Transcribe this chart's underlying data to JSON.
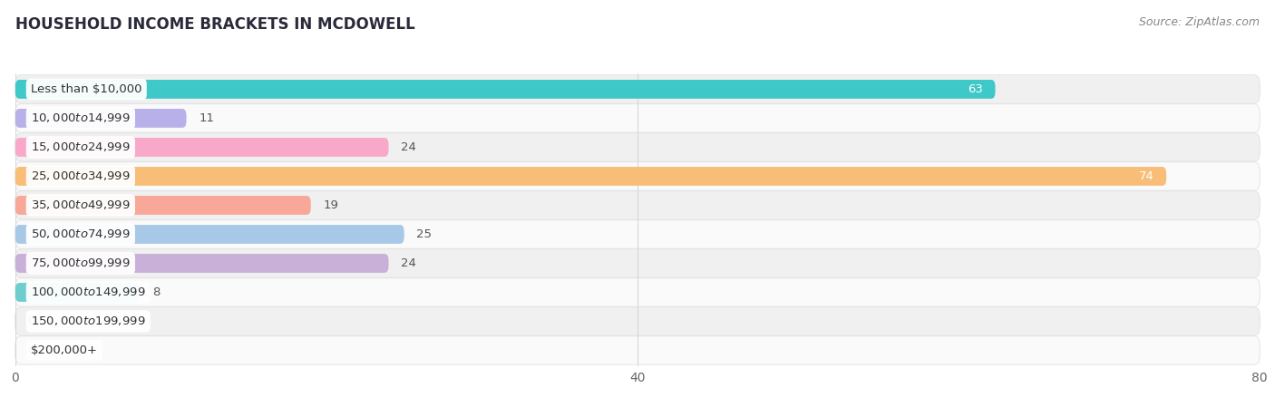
{
  "title": "HOUSEHOLD INCOME BRACKETS IN MCDOWELL",
  "source": "Source: ZipAtlas.com",
  "categories": [
    "Less than $10,000",
    "$10,000 to $14,999",
    "$15,000 to $24,999",
    "$25,000 to $34,999",
    "$35,000 to $49,999",
    "$50,000 to $74,999",
    "$75,000 to $99,999",
    "$100,000 to $149,999",
    "$150,000 to $199,999",
    "$200,000+"
  ],
  "values": [
    63,
    11,
    24,
    74,
    19,
    25,
    24,
    8,
    0,
    0
  ],
  "bar_colors": [
    "#3EC8C8",
    "#B8B0E8",
    "#F8A8C8",
    "#F8BE78",
    "#F8A898",
    "#A8C8E8",
    "#C8B0D8",
    "#6ECECE",
    "#C0B8EE",
    "#F8C0D0"
  ],
  "row_bg_colors": [
    "#f0f0f0",
    "#fafafa"
  ],
  "grid_color": "#d8d8d8",
  "xlim": [
    0,
    80
  ],
  "xticks": [
    0,
    40,
    80
  ],
  "title_fontsize": 12,
  "source_fontsize": 9,
  "value_fontsize": 9.5,
  "label_fontsize": 9.5,
  "tick_fontsize": 10,
  "bar_height": 0.65
}
